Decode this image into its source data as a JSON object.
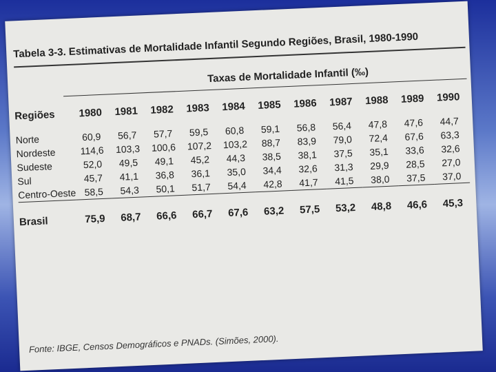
{
  "header": {
    "title": "Tabela 3-3. Estimativas de Mortalidade Infantil Segundo Regiões, Brasil, 1980-1990",
    "group_label": "Taxas de Mortalidade Infantil (‰)"
  },
  "table": {
    "columns": [
      "Regiões",
      "1980",
      "1981",
      "1982",
      "1983",
      "1984",
      "1985",
      "1986",
      "1987",
      "1988",
      "1989",
      "1990"
    ],
    "rows": [
      [
        "Norte",
        "60,9",
        "56,7",
        "57,7",
        "59,5",
        "60,8",
        "59,1",
        "56,8",
        "56,4",
        "47,8",
        "47,6",
        "44,7"
      ],
      [
        "Nordeste",
        "114,6",
        "103,3",
        "100,6",
        "107,2",
        "103,2",
        "88,7",
        "83,9",
        "79,0",
        "72,4",
        "67,6",
        "63,3"
      ],
      [
        "Sudeste",
        "52,0",
        "49,5",
        "49,1",
        "45,2",
        "44,3",
        "38,5",
        "38,1",
        "37,5",
        "35,1",
        "33,6",
        "32,6"
      ],
      [
        "Sul",
        "45,7",
        "41,1",
        "36,8",
        "36,1",
        "35,0",
        "34,4",
        "32,6",
        "31,3",
        "29,9",
        "28,5",
        "27,0"
      ],
      [
        "Centro-Oeste",
        "58,5",
        "54,3",
        "50,1",
        "51,7",
        "54,4",
        "42,8",
        "41,7",
        "41,5",
        "38,0",
        "37,5",
        "37,0"
      ]
    ],
    "total_row": [
      "Brasil",
      "75,9",
      "68,7",
      "66,6",
      "66,7",
      "67,6",
      "63,2",
      "57,5",
      "53,2",
      "48,8",
      "46,6",
      "45,3"
    ]
  },
  "footer": {
    "source": "Fonte: IBGE, Censos Demográficos e PNADs. (Simões, 2000)."
  }
}
